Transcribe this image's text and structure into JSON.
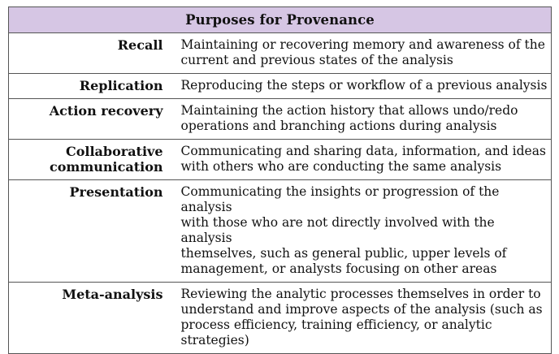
{
  "table": {
    "title": "Purposes for Provenance",
    "rows": [
      {
        "term_lines": [
          "Recall"
        ],
        "desc_lines": [
          "Maintaining or recovering memory and awareness of the",
          "current and previous states of the analysis"
        ]
      },
      {
        "term_lines": [
          "Replication"
        ],
        "desc_lines": [
          "Reproducing the steps or workflow of a previous analysis"
        ]
      },
      {
        "term_lines": [
          "Action recovery"
        ],
        "desc_lines": [
          "Maintaining the action history that allows undo/redo",
          "operations and branching actions during analysis"
        ]
      },
      {
        "term_lines": [
          "Collaborative",
          "communication"
        ],
        "desc_lines": [
          "Communicating and sharing data, information, and ideas",
          "with others who are conducting the same analysis"
        ]
      },
      {
        "term_lines": [
          "Presentation"
        ],
        "desc_lines": [
          "Communicating the insights or progression of the analysis",
          "with those who are not directly involved with the analysis",
          "themselves, such as general public, upper levels of",
          "management, or analysts focusing on other areas"
        ]
      },
      {
        "term_lines": [
          "Meta-analysis"
        ],
        "desc_lines": [
          "Reviewing the analytic processes themselves in order to",
          "understand and improve aspects of the analysis (such as",
          "process efficiency, training efficiency, or analytic",
          "strategies)"
        ]
      }
    ]
  },
  "colors": {
    "header_background": "#d6c6e4",
    "border": "#555555",
    "text": "#111111"
  }
}
